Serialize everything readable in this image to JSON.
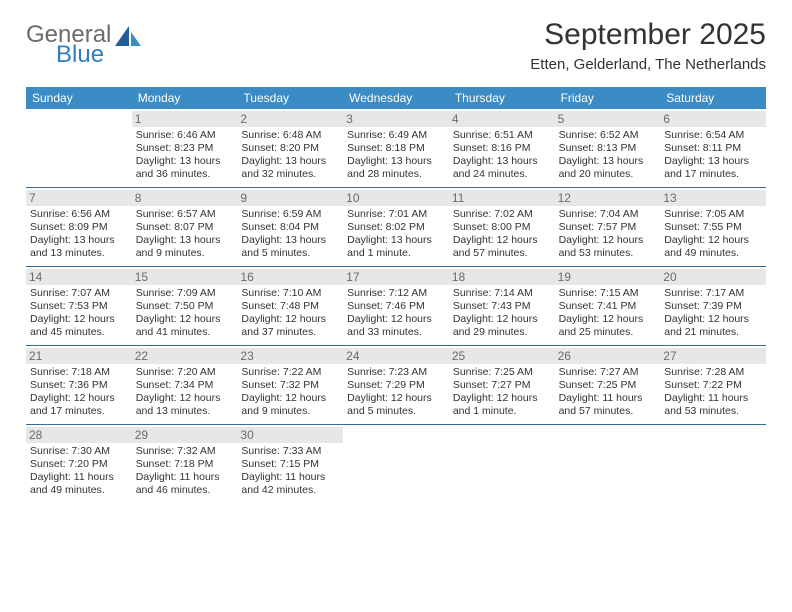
{
  "logo": {
    "word1": "General",
    "word2": "Blue"
  },
  "title": "September 2025",
  "location": "Etten, Gelderland, The Netherlands",
  "colors": {
    "header_bg": "#3b8bc5",
    "header_text": "#ffffff",
    "rule": "#3b6a8f",
    "shade_bg": "#e7e7e7",
    "logo_gray": "#6b6b6b",
    "logo_blue": "#2f7fbf",
    "body_text": "#333333",
    "page_bg": "#ffffff"
  },
  "dow": [
    "Sunday",
    "Monday",
    "Tuesday",
    "Wednesday",
    "Thursday",
    "Friday",
    "Saturday"
  ],
  "weeks": [
    [
      {},
      {
        "n": "1",
        "shade": true,
        "sr": "Sunrise: 6:46 AM",
        "ss": "Sunset: 8:23 PM",
        "dl1": "Daylight: 13 hours",
        "dl2": "and 36 minutes."
      },
      {
        "n": "2",
        "shade": true,
        "sr": "Sunrise: 6:48 AM",
        "ss": "Sunset: 8:20 PM",
        "dl1": "Daylight: 13 hours",
        "dl2": "and 32 minutes."
      },
      {
        "n": "3",
        "shade": true,
        "sr": "Sunrise: 6:49 AM",
        "ss": "Sunset: 8:18 PM",
        "dl1": "Daylight: 13 hours",
        "dl2": "and 28 minutes."
      },
      {
        "n": "4",
        "shade": true,
        "sr": "Sunrise: 6:51 AM",
        "ss": "Sunset: 8:16 PM",
        "dl1": "Daylight: 13 hours",
        "dl2": "and 24 minutes."
      },
      {
        "n": "5",
        "shade": true,
        "sr": "Sunrise: 6:52 AM",
        "ss": "Sunset: 8:13 PM",
        "dl1": "Daylight: 13 hours",
        "dl2": "and 20 minutes."
      },
      {
        "n": "6",
        "shade": true,
        "sr": "Sunrise: 6:54 AM",
        "ss": "Sunset: 8:11 PM",
        "dl1": "Daylight: 13 hours",
        "dl2": "and 17 minutes."
      }
    ],
    [
      {
        "n": "7",
        "shade": true,
        "sr": "Sunrise: 6:56 AM",
        "ss": "Sunset: 8:09 PM",
        "dl1": "Daylight: 13 hours",
        "dl2": "and 13 minutes."
      },
      {
        "n": "8",
        "shade": true,
        "sr": "Sunrise: 6:57 AM",
        "ss": "Sunset: 8:07 PM",
        "dl1": "Daylight: 13 hours",
        "dl2": "and 9 minutes."
      },
      {
        "n": "9",
        "shade": true,
        "sr": "Sunrise: 6:59 AM",
        "ss": "Sunset: 8:04 PM",
        "dl1": "Daylight: 13 hours",
        "dl2": "and 5 minutes."
      },
      {
        "n": "10",
        "shade": true,
        "sr": "Sunrise: 7:01 AM",
        "ss": "Sunset: 8:02 PM",
        "dl1": "Daylight: 13 hours",
        "dl2": "and 1 minute."
      },
      {
        "n": "11",
        "shade": true,
        "sr": "Sunrise: 7:02 AM",
        "ss": "Sunset: 8:00 PM",
        "dl1": "Daylight: 12 hours",
        "dl2": "and 57 minutes."
      },
      {
        "n": "12",
        "shade": true,
        "sr": "Sunrise: 7:04 AM",
        "ss": "Sunset: 7:57 PM",
        "dl1": "Daylight: 12 hours",
        "dl2": "and 53 minutes."
      },
      {
        "n": "13",
        "shade": true,
        "sr": "Sunrise: 7:05 AM",
        "ss": "Sunset: 7:55 PM",
        "dl1": "Daylight: 12 hours",
        "dl2": "and 49 minutes."
      }
    ],
    [
      {
        "n": "14",
        "shade": true,
        "sr": "Sunrise: 7:07 AM",
        "ss": "Sunset: 7:53 PM",
        "dl1": "Daylight: 12 hours",
        "dl2": "and 45 minutes."
      },
      {
        "n": "15",
        "shade": true,
        "sr": "Sunrise: 7:09 AM",
        "ss": "Sunset: 7:50 PM",
        "dl1": "Daylight: 12 hours",
        "dl2": "and 41 minutes."
      },
      {
        "n": "16",
        "shade": true,
        "sr": "Sunrise: 7:10 AM",
        "ss": "Sunset: 7:48 PM",
        "dl1": "Daylight: 12 hours",
        "dl2": "and 37 minutes."
      },
      {
        "n": "17",
        "shade": true,
        "sr": "Sunrise: 7:12 AM",
        "ss": "Sunset: 7:46 PM",
        "dl1": "Daylight: 12 hours",
        "dl2": "and 33 minutes."
      },
      {
        "n": "18",
        "shade": true,
        "sr": "Sunrise: 7:14 AM",
        "ss": "Sunset: 7:43 PM",
        "dl1": "Daylight: 12 hours",
        "dl2": "and 29 minutes."
      },
      {
        "n": "19",
        "shade": true,
        "sr": "Sunrise: 7:15 AM",
        "ss": "Sunset: 7:41 PM",
        "dl1": "Daylight: 12 hours",
        "dl2": "and 25 minutes."
      },
      {
        "n": "20",
        "shade": true,
        "sr": "Sunrise: 7:17 AM",
        "ss": "Sunset: 7:39 PM",
        "dl1": "Daylight: 12 hours",
        "dl2": "and 21 minutes."
      }
    ],
    [
      {
        "n": "21",
        "shade": true,
        "sr": "Sunrise: 7:18 AM",
        "ss": "Sunset: 7:36 PM",
        "dl1": "Daylight: 12 hours",
        "dl2": "and 17 minutes."
      },
      {
        "n": "22",
        "shade": true,
        "sr": "Sunrise: 7:20 AM",
        "ss": "Sunset: 7:34 PM",
        "dl1": "Daylight: 12 hours",
        "dl2": "and 13 minutes."
      },
      {
        "n": "23",
        "shade": true,
        "sr": "Sunrise: 7:22 AM",
        "ss": "Sunset: 7:32 PM",
        "dl1": "Daylight: 12 hours",
        "dl2": "and 9 minutes."
      },
      {
        "n": "24",
        "shade": true,
        "sr": "Sunrise: 7:23 AM",
        "ss": "Sunset: 7:29 PM",
        "dl1": "Daylight: 12 hours",
        "dl2": "and 5 minutes."
      },
      {
        "n": "25",
        "shade": true,
        "sr": "Sunrise: 7:25 AM",
        "ss": "Sunset: 7:27 PM",
        "dl1": "Daylight: 12 hours",
        "dl2": "and 1 minute."
      },
      {
        "n": "26",
        "shade": true,
        "sr": "Sunrise: 7:27 AM",
        "ss": "Sunset: 7:25 PM",
        "dl1": "Daylight: 11 hours",
        "dl2": "and 57 minutes."
      },
      {
        "n": "27",
        "shade": true,
        "sr": "Sunrise: 7:28 AM",
        "ss": "Sunset: 7:22 PM",
        "dl1": "Daylight: 11 hours",
        "dl2": "and 53 minutes."
      }
    ],
    [
      {
        "n": "28",
        "shade": true,
        "sr": "Sunrise: 7:30 AM",
        "ss": "Sunset: 7:20 PM",
        "dl1": "Daylight: 11 hours",
        "dl2": "and 49 minutes."
      },
      {
        "n": "29",
        "shade": true,
        "sr": "Sunrise: 7:32 AM",
        "ss": "Sunset: 7:18 PM",
        "dl1": "Daylight: 11 hours",
        "dl2": "and 46 minutes."
      },
      {
        "n": "30",
        "shade": true,
        "sr": "Sunrise: 7:33 AM",
        "ss": "Sunset: 7:15 PM",
        "dl1": "Daylight: 11 hours",
        "dl2": "and 42 minutes."
      },
      {},
      {},
      {},
      {}
    ]
  ]
}
